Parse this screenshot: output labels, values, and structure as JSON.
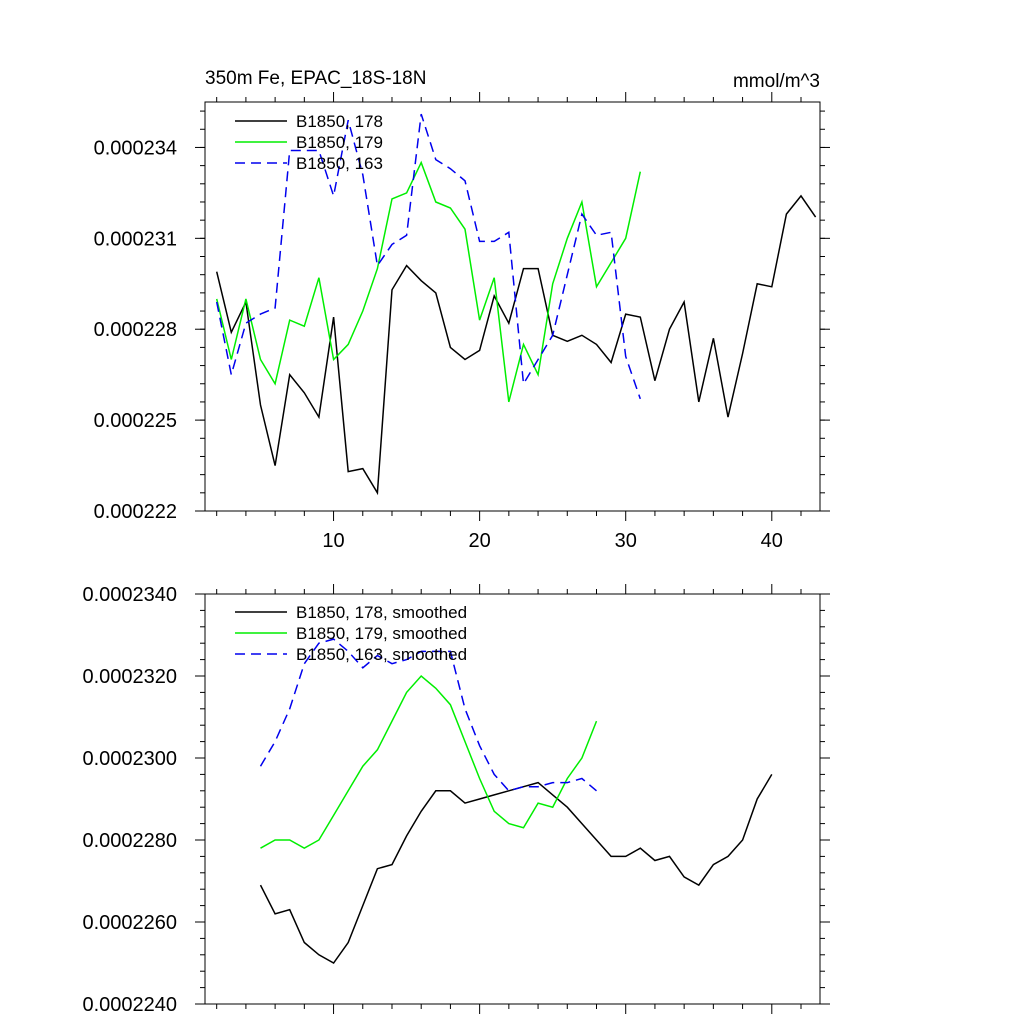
{
  "chart_data": [
    {
      "type": "line",
      "title_left": "350m Fe, EPAC_18S-18N",
      "title_right": "mmol/m^3",
      "xlim": [
        1.2,
        43.3
      ],
      "ylim": [
        0.000222,
        0.0002355
      ],
      "x_ticks": [
        10,
        20,
        30,
        40
      ],
      "x_tick_labels": [
        "10",
        "20",
        "30",
        "40"
      ],
      "y_ticks": [
        0.000222,
        0.000225,
        0.000228,
        0.000231,
        0.000234
      ],
      "y_tick_labels": [
        "0.000222",
        "0.000225",
        "0.000228",
        "0.000231",
        "0.000234"
      ],
      "series": [
        {
          "name": "B1850, 178",
          "color": "#000000",
          "dash": "",
          "x": [
            2,
            3,
            4,
            5,
            6,
            7,
            8,
            9,
            10,
            11,
            12,
            13,
            14,
            15,
            16,
            17,
            18,
            19,
            20,
            21,
            22,
            23,
            24,
            25,
            26,
            27,
            28,
            29,
            30,
            31,
            32,
            33,
            34,
            35,
            36,
            37,
            38,
            39,
            40,
            41,
            42,
            43
          ],
          "values": [
            0.0002299,
            0.0002279,
            0.0002289,
            0.0002255,
            0.0002235,
            0.0002265,
            0.0002259,
            0.0002251,
            0.0002284,
            0.0002233,
            0.0002234,
            0.0002226,
            0.0002293,
            0.0002301,
            0.0002296,
            0.0002292,
            0.0002274,
            0.000227,
            0.0002273,
            0.0002291,
            0.0002282,
            0.00023,
            0.00023,
            0.0002278,
            0.0002276,
            0.0002278,
            0.0002275,
            0.0002269,
            0.0002285,
            0.0002284,
            0.0002263,
            0.000228,
            0.0002289,
            0.0002256,
            0.0002277,
            0.0002251,
            0.0002272,
            0.0002295,
            0.0002294,
            0.0002318,
            0.0002324,
            0.0002317
          ]
        },
        {
          "name": "B1850, 179",
          "color": "#00ee00",
          "dash": "",
          "x": [
            2,
            3,
            4,
            5,
            6,
            7,
            8,
            9,
            10,
            11,
            12,
            13,
            14,
            15,
            16,
            17,
            18,
            19,
            20,
            21,
            22,
            23,
            24,
            25,
            26,
            27,
            28,
            29,
            30,
            31
          ],
          "values": [
            0.000229,
            0.000227,
            0.000229,
            0.000227,
            0.0002262,
            0.0002283,
            0.0002281,
            0.0002297,
            0.000227,
            0.0002275,
            0.0002286,
            0.00023,
            0.0002323,
            0.0002325,
            0.0002335,
            0.0002322,
            0.000232,
            0.0002313,
            0.0002283,
            0.0002297,
            0.0002256,
            0.0002275,
            0.0002265,
            0.0002295,
            0.000231,
            0.0002322,
            0.0002294,
            0.0002302,
            0.000231,
            0.0002332
          ]
        },
        {
          "name": "B1850, 163",
          "color": "#0000ee",
          "dash": "10,6",
          "x": [
            2,
            3,
            4,
            5,
            6,
            7,
            8,
            9,
            10,
            11,
            12,
            13,
            14,
            15,
            16,
            17,
            18,
            19,
            20,
            21,
            22,
            23,
            24,
            25,
            26,
            27,
            28,
            29,
            30,
            31
          ],
          "values": [
            0.0002289,
            0.0002265,
            0.0002282,
            0.0002285,
            0.0002287,
            0.0002339,
            0.0002339,
            0.0002339,
            0.0002324,
            0.0002349,
            0.0002331,
            0.0002301,
            0.0002308,
            0.0002311,
            0.0002351,
            0.0002336,
            0.0002333,
            0.0002329,
            0.0002309,
            0.0002309,
            0.0002312,
            0.0002262,
            0.000227,
            0.0002278,
            0.0002298,
            0.0002318,
            0.0002311,
            0.0002312,
            0.0002271,
            0.0002257
          ]
        }
      ]
    },
    {
      "type": "line",
      "xlim": [
        1.2,
        43.3
      ],
      "ylim": [
        0.000224,
        0.000234
      ],
      "x_ticks": [
        10,
        20,
        30,
        40
      ],
      "x_tick_labels": [],
      "y_ticks": [
        0.000224,
        0.000226,
        0.000228,
        0.00023,
        0.000232,
        0.000234
      ],
      "y_tick_labels": [
        "0.0002240",
        "0.0002260",
        "0.0002280",
        "0.0002300",
        "0.0002320",
        "0.0002340"
      ],
      "series": [
        {
          "name": "B1850, 178, smoothed",
          "color": "#000000",
          "dash": "",
          "x": [
            5,
            6,
            7,
            8,
            9,
            10,
            11,
            12,
            13,
            14,
            15,
            16,
            17,
            18,
            19,
            20,
            21,
            22,
            23,
            24,
            25,
            26,
            27,
            28,
            29,
            30,
            31,
            32,
            33,
            34,
            35,
            36,
            37,
            38,
            39,
            40
          ],
          "values": [
            0.0002269,
            0.0002262,
            0.0002263,
            0.0002255,
            0.0002252,
            0.000225,
            0.0002255,
            0.0002264,
            0.0002273,
            0.0002274,
            0.0002281,
            0.0002287,
            0.0002292,
            0.0002292,
            0.0002289,
            0.000229,
            0.0002291,
            0.0002292,
            0.0002293,
            0.0002294,
            0.0002291,
            0.0002288,
            0.0002284,
            0.000228,
            0.0002276,
            0.0002276,
            0.0002278,
            0.0002275,
            0.0002276,
            0.0002271,
            0.0002269,
            0.0002274,
            0.0002276,
            0.000228,
            0.000229,
            0.0002296
          ]
        },
        {
          "name": "B1850, 179, smoothed",
          "color": "#00ee00",
          "dash": "",
          "x": [
            5,
            6,
            7,
            8,
            9,
            10,
            11,
            12,
            13,
            14,
            15,
            16,
            17,
            18,
            19,
            20,
            21,
            22,
            23,
            24,
            25,
            26,
            27,
            28
          ],
          "values": [
            0.0002278,
            0.000228,
            0.000228,
            0.0002278,
            0.000228,
            0.0002286,
            0.0002292,
            0.0002298,
            0.0002302,
            0.0002309,
            0.0002316,
            0.000232,
            0.0002317,
            0.0002313,
            0.0002304,
            0.0002295,
            0.0002287,
            0.0002284,
            0.0002283,
            0.0002289,
            0.0002288,
            0.0002295,
            0.00023,
            0.0002309
          ]
        },
        {
          "name": "B1850, 163, smoothed",
          "color": "#0000ee",
          "dash": "10,6",
          "x": [
            5,
            6,
            7,
            8,
            9,
            10,
            11,
            12,
            13,
            14,
            15,
            16,
            17,
            18,
            19,
            20,
            21,
            22,
            23,
            24,
            25,
            26,
            27,
            28
          ],
          "values": [
            0.0002298,
            0.0002304,
            0.0002312,
            0.0002323,
            0.0002328,
            0.0002329,
            0.0002326,
            0.0002322,
            0.0002325,
            0.0002323,
            0.0002324,
            0.0002326,
            0.0002326,
            0.0002326,
            0.0002312,
            0.0002303,
            0.0002296,
            0.0002292,
            0.0002293,
            0.0002293,
            0.0002294,
            0.0002294,
            0.0002295,
            0.0002292
          ]
        }
      ]
    }
  ]
}
